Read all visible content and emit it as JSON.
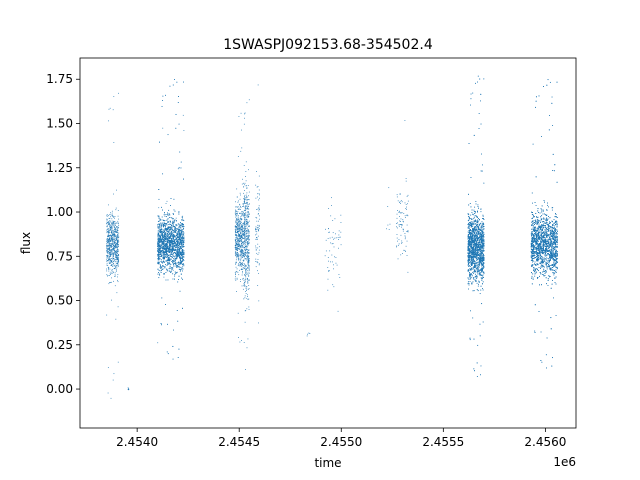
{
  "chart_data": {
    "type": "scatter",
    "title": "1SWASPJ092153.68-354502.4",
    "xlabel": "time",
    "ylabel": "flux",
    "x_offset_label": "1e6",
    "xlim": [
      2.45372,
      2.45615
    ],
    "ylim": [
      -0.22,
      1.87
    ],
    "x_ticks": [
      2.454,
      2.4545,
      2.455,
      2.4555,
      2.456
    ],
    "x_tick_labels": [
      "2.4540",
      "2.4545",
      "2.4550",
      "2.4555",
      "2.4560"
    ],
    "y_ticks": [
      0.0,
      0.25,
      0.5,
      0.75,
      1.0,
      1.25,
      1.5,
      1.75
    ],
    "y_tick_labels": [
      "0.00",
      "0.25",
      "0.50",
      "0.75",
      "1.00",
      "1.25",
      "1.50",
      "1.75"
    ],
    "grid": false,
    "marker_color": "#1f77b4",
    "series": [
      {
        "clusters": [
          {
            "x_start": 2.45385,
            "x_end": 2.45391,
            "y_center": 0.82,
            "y_spread": 0.16,
            "y_min": -0.12,
            "y_max": 1.7,
            "points": 700
          },
          {
            "x_start": 2.45395,
            "x_end": 2.45396,
            "y_center": 0.0,
            "y_spread": 0.01,
            "y_min": -0.01,
            "y_max": 0.01,
            "points": 6
          },
          {
            "x_start": 2.4541,
            "x_end": 2.45423,
            "y_center": 0.82,
            "y_spread": 0.15,
            "y_min": 0.15,
            "y_max": 1.76,
            "points": 3200
          },
          {
            "x_start": 2.45448,
            "x_end": 2.45452,
            "y_center": 0.85,
            "y_spread": 0.2,
            "y_min": 0.25,
            "y_max": 1.58,
            "points": 500
          },
          {
            "x_start": 2.45452,
            "x_end": 2.45455,
            "y_center": 0.85,
            "y_spread": 0.3,
            "y_min": 0.05,
            "y_max": 1.66,
            "points": 450
          },
          {
            "x_start": 2.45458,
            "x_end": 2.4546,
            "y_center": 0.9,
            "y_spread": 0.3,
            "y_min": 0.07,
            "y_max": 1.73,
            "points": 80
          },
          {
            "x_start": 2.45483,
            "x_end": 2.45485,
            "y_center": 0.32,
            "y_spread": 0.02,
            "y_min": 0.29,
            "y_max": 0.35,
            "points": 4
          },
          {
            "x_start": 2.45492,
            "x_end": 2.455,
            "y_center": 0.8,
            "y_spread": 0.25,
            "y_min": 0.4,
            "y_max": 1.24,
            "points": 60
          },
          {
            "x_start": 2.45522,
            "x_end": 2.45524,
            "y_center": 0.95,
            "y_spread": 0.15,
            "y_min": 0.85,
            "y_max": 1.5,
            "points": 6
          },
          {
            "x_start": 2.45527,
            "x_end": 2.45533,
            "y_center": 0.95,
            "y_spread": 0.2,
            "y_min": 0.42,
            "y_max": 1.68,
            "points": 90
          },
          {
            "x_start": 2.45562,
            "x_end": 2.4557,
            "y_center": 0.8,
            "y_spread": 0.18,
            "y_min": 0.05,
            "y_max": 1.78,
            "points": 3000
          },
          {
            "x_start": 2.45593,
            "x_end": 2.45606,
            "y_center": 0.82,
            "y_spread": 0.17,
            "y_min": 0.1,
            "y_max": 1.76,
            "points": 3600
          }
        ]
      }
    ]
  }
}
